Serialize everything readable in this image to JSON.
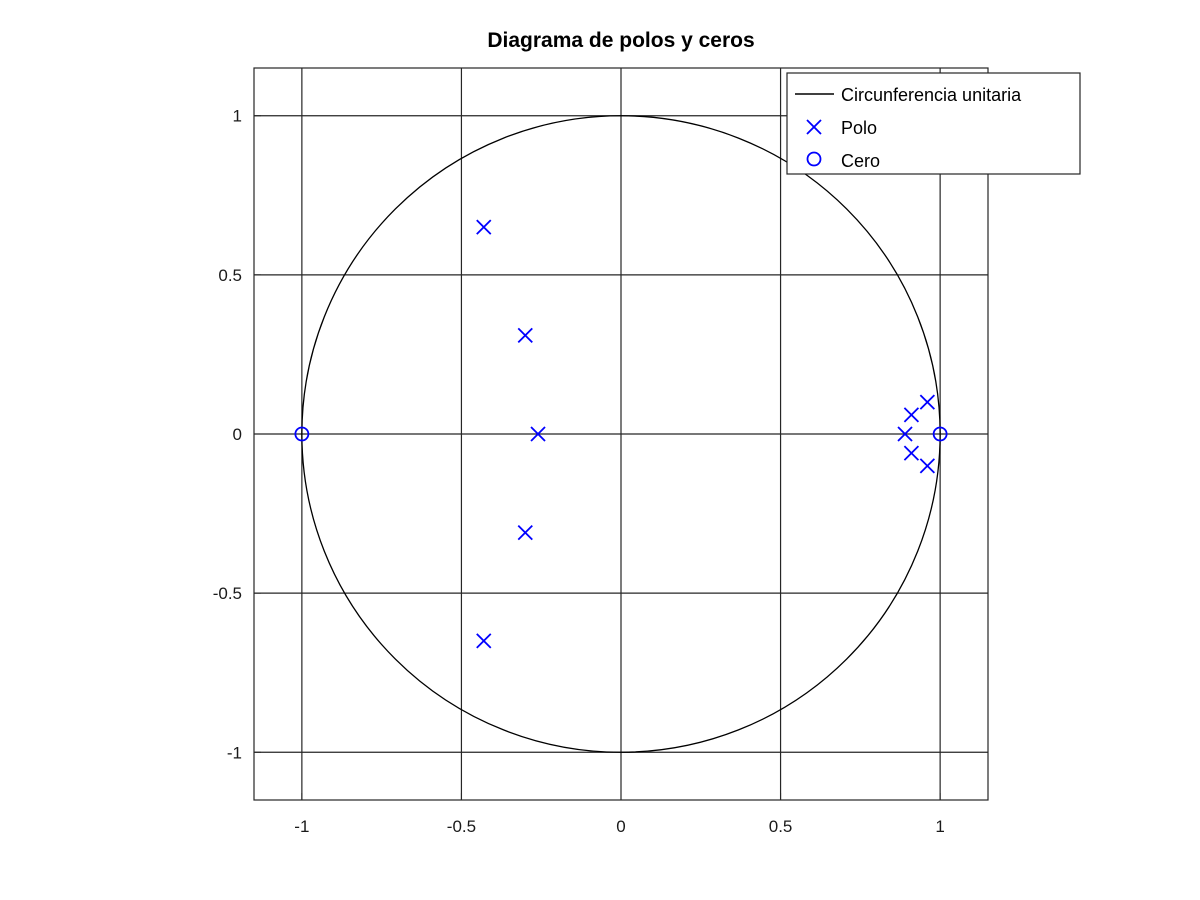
{
  "chart_data": {
    "type": "scatter",
    "title": "Diagrama de polos y ceros",
    "xlabel": "",
    "ylabel": "",
    "xlim": [
      -1.15,
      1.15
    ],
    "ylim": [
      -1.15,
      1.15
    ],
    "xticks": [
      -1,
      -0.5,
      0,
      0.5,
      1
    ],
    "yticks": [
      -1,
      -0.5,
      0,
      0.5,
      1
    ],
    "xtick_labels": [
      "-1",
      "-0.5",
      "0",
      "0.5",
      "1"
    ],
    "ytick_labels": [
      "-1",
      "-0.5",
      "0",
      "0.5",
      "1"
    ],
    "grid": true,
    "legend_position": "top-right",
    "series": [
      {
        "name": "Circunferencia unitaria",
        "kind": "line",
        "shape": "circle",
        "center": [
          0,
          0
        ],
        "radius": 1,
        "color": "#000000"
      },
      {
        "name": "Polo",
        "kind": "marker",
        "marker": "x",
        "color": "#0000ff",
        "points": [
          [
            -0.43,
            0.65
          ],
          [
            -0.43,
            -0.65
          ],
          [
            -0.3,
            0.31
          ],
          [
            -0.3,
            -0.31
          ],
          [
            -0.26,
            0.0
          ],
          [
            0.89,
            0.0
          ],
          [
            0.91,
            0.06
          ],
          [
            0.91,
            -0.06
          ],
          [
            0.96,
            0.1
          ],
          [
            0.96,
            -0.1
          ]
        ]
      },
      {
        "name": "Cero",
        "kind": "marker",
        "marker": "o",
        "color": "#0000ff",
        "points": [
          [
            -1.0,
            0.0
          ],
          [
            1.0,
            0.0
          ]
        ]
      }
    ]
  }
}
